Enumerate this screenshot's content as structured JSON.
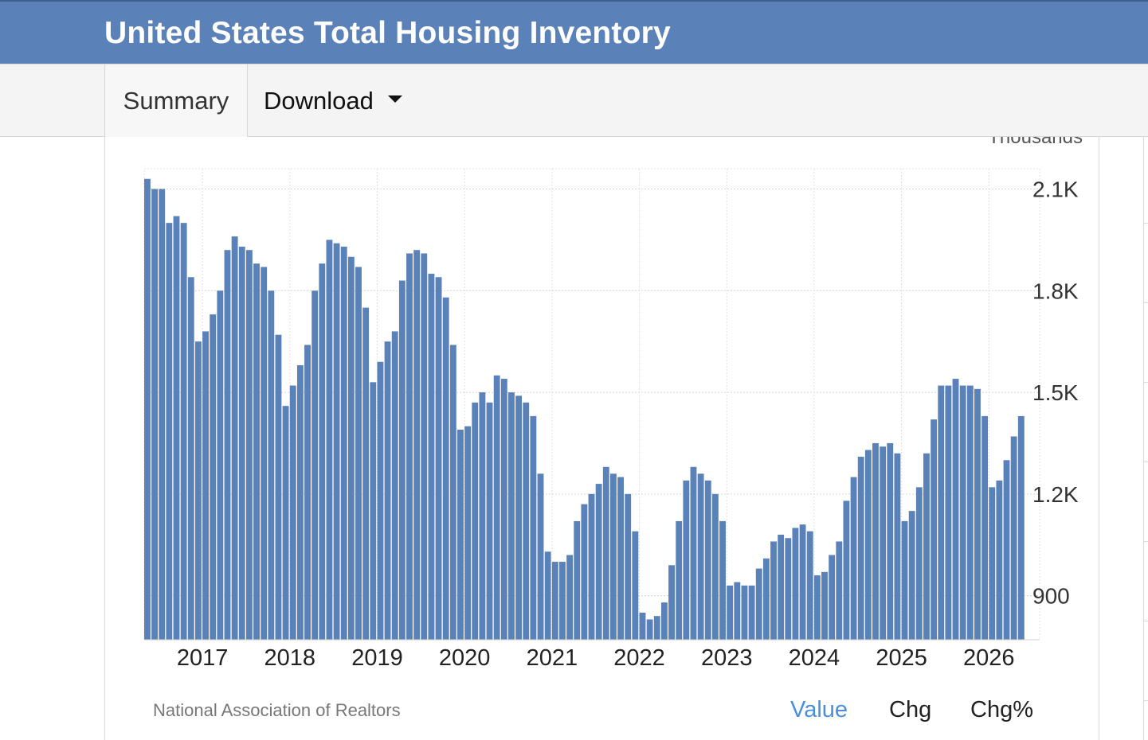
{
  "header": {
    "title": "United States Total Housing Inventory"
  },
  "tabs": {
    "summary": "Summary",
    "download": "Download"
  },
  "footer": {
    "source": "National Association of Realtors",
    "view_value": "Value",
    "view_chg": "Chg",
    "view_chgpct": "Chg%"
  },
  "colors": {
    "header_bg": "#5b81b9",
    "bar": "#5b81b9",
    "accent": "#4a90d9"
  },
  "chart_data": {
    "type": "bar",
    "ylabel": "Thousands",
    "ylim": [
      770,
      2160
    ],
    "y_ticks": [
      900,
      1200,
      1500,
      1800,
      2100
    ],
    "y_tick_labels": [
      "900",
      "1.2K",
      "1.5K",
      "1.8K",
      "2.1K"
    ],
    "x_tick_labels": [
      "2017",
      "2018",
      "2019",
      "2020",
      "2021",
      "2022",
      "2023",
      "2024",
      "2025",
      "2026"
    ],
    "grid": true,
    "start": "2016-05",
    "frequency": "monthly",
    "values": [
      2130,
      2100,
      2100,
      2000,
      2020,
      2000,
      1840,
      1650,
      1680,
      1730,
      1800,
      1920,
      1960,
      1930,
      1920,
      1880,
      1870,
      1800,
      1670,
      1460,
      1520,
      1580,
      1640,
      1800,
      1880,
      1950,
      1940,
      1930,
      1900,
      1870,
      1750,
      1530,
      1590,
      1650,
      1680,
      1830,
      1910,
      1920,
      1910,
      1850,
      1840,
      1780,
      1640,
      1390,
      1400,
      1470,
      1500,
      1470,
      1550,
      1540,
      1500,
      1490,
      1470,
      1430,
      1260,
      1030,
      1000,
      1000,
      1020,
      1120,
      1170,
      1200,
      1230,
      1280,
      1260,
      1250,
      1200,
      1090,
      850,
      830,
      840,
      880,
      990,
      1120,
      1240,
      1280,
      1260,
      1240,
      1200,
      1120,
      930,
      940,
      930,
      930,
      980,
      1010,
      1060,
      1080,
      1070,
      1100,
      1110,
      1090,
      960,
      970,
      1020,
      1060,
      1180,
      1250,
      1310,
      1330,
      1350,
      1340,
      1350,
      1320,
      1120,
      1150,
      1220,
      1320,
      1420,
      1520,
      1520,
      1540,
      1520,
      1520,
      1510,
      1430,
      1220,
      1240,
      1300,
      1370,
      1430
    ]
  }
}
